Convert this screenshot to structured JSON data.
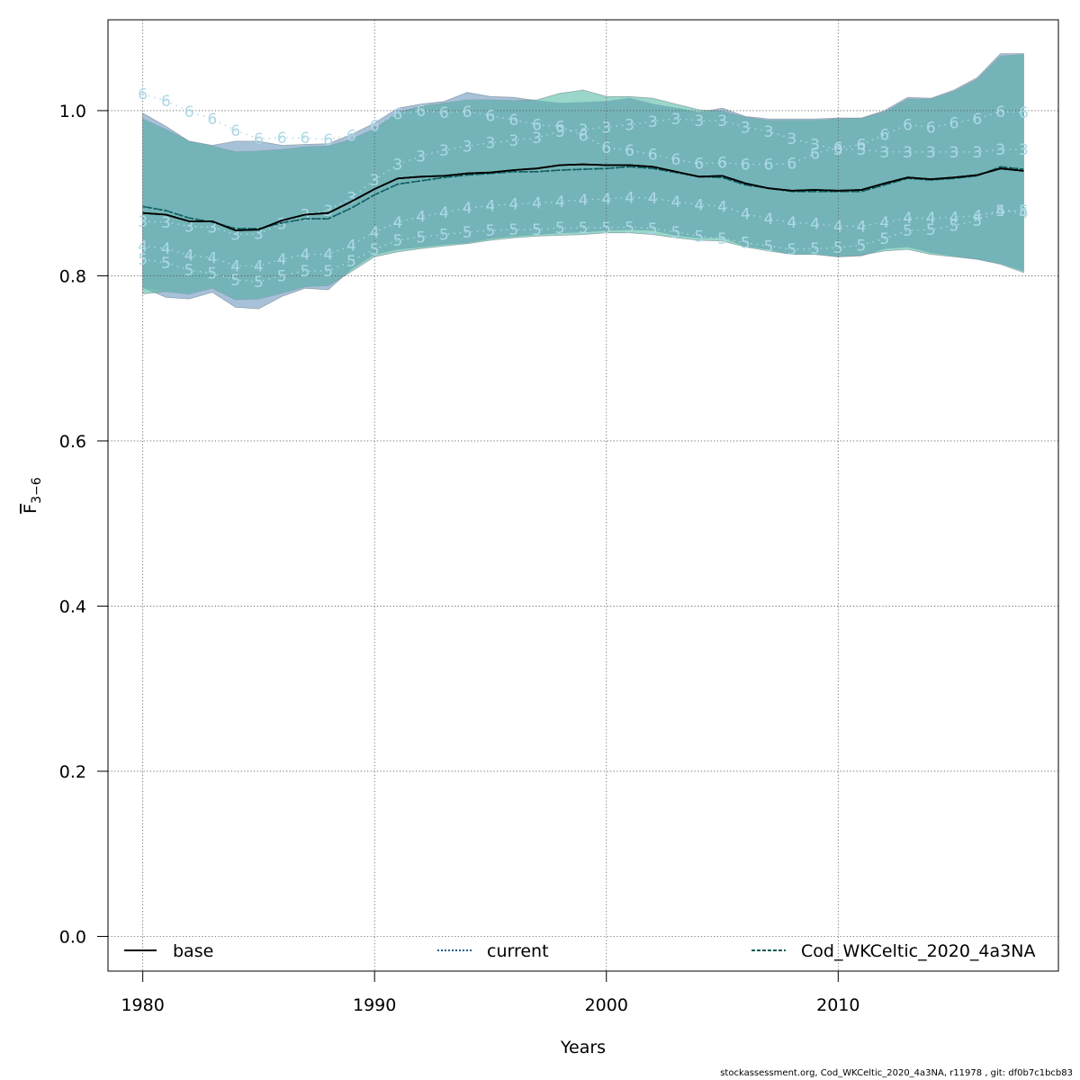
{
  "chart_data": {
    "type": "line",
    "xlabel": "Years",
    "ylabel_base": "F",
    "ylabel_sub": "3−6",
    "xlim": [
      1978.5,
      2019.5
    ],
    "ylim": [
      -0.042,
      1.11
    ],
    "xticks": [
      1980,
      1990,
      2000,
      2010
    ],
    "yticks": [
      0.0,
      0.2,
      0.4,
      0.6,
      0.8,
      1.0
    ],
    "ytick_labels": [
      "0.0",
      "0.2",
      "0.4",
      "0.6",
      "0.8",
      "1.0"
    ],
    "grid": true,
    "legend": [
      "base",
      "current",
      "Cod_WKCeltic_2020_4a3NA"
    ],
    "legend_placement": "bottom",
    "colors": {
      "base_band": "#6d98be",
      "wk_band": "#56bda6",
      "overlap": "#74b4b8",
      "peel": "#add8e6",
      "base_line": "#000000",
      "current_line": "#1f5f8b",
      "wk_line": "#0b5e52"
    },
    "x": [
      1980,
      1981,
      1982,
      1983,
      1984,
      1985,
      1986,
      1987,
      1988,
      1989,
      1990,
      1991,
      1992,
      1993,
      1994,
      1995,
      1996,
      1997,
      1998,
      1999,
      2000,
      2001,
      2002,
      2003,
      2004,
      2005,
      2006,
      2007,
      2008,
      2009,
      2010,
      2011,
      2012,
      2013,
      2014,
      2015,
      2016,
      2017,
      2018
    ],
    "series": [
      {
        "name": "base",
        "style": "solid",
        "values": [
          0.876,
          0.874,
          0.866,
          0.866,
          0.855,
          0.856,
          0.867,
          0.874,
          0.876,
          0.89,
          0.905,
          0.918,
          0.92,
          0.921,
          0.924,
          0.925,
          0.928,
          0.93,
          0.934,
          0.935,
          0.934,
          0.934,
          0.932,
          0.926,
          0.92,
          0.921,
          0.912,
          0.906,
          0.903,
          0.904,
          0.903,
          0.904,
          0.912,
          0.919,
          0.917,
          0.919,
          0.922,
          0.93,
          0.927
        ],
        "lower": [
          0.786,
          0.774,
          0.772,
          0.78,
          0.762,
          0.76,
          0.775,
          0.785,
          0.783,
          0.808,
          0.826,
          0.832,
          0.835,
          0.838,
          0.84,
          0.845,
          0.848,
          0.85,
          0.852,
          0.853,
          0.855,
          0.856,
          0.855,
          0.849,
          0.846,
          0.846,
          0.836,
          0.832,
          0.826,
          0.826,
          0.823,
          0.824,
          0.833,
          0.835,
          0.828,
          0.824,
          0.82,
          0.815,
          0.806
        ],
        "upper": [
          0.997,
          0.981,
          0.963,
          0.958,
          0.963,
          0.963,
          0.958,
          0.959,
          0.96,
          0.971,
          0.985,
          1.003,
          1.008,
          1.011,
          1.022,
          1.017,
          1.016,
          1.012,
          1.009,
          1.01,
          1.011,
          1.015,
          1.008,
          1.003,
          0.998,
          1.003,
          0.993,
          0.99,
          0.99,
          0.99,
          0.991,
          0.991,
          1.0,
          1.016,
          1.015,
          1.025,
          1.04,
          1.069,
          1.069
        ]
      },
      {
        "name": "current",
        "style": "dotted",
        "values": [
          0.884,
          0.879,
          0.87,
          0.865,
          0.857,
          0.857,
          0.864,
          0.869,
          0.869,
          0.882,
          0.898,
          0.911,
          0.915,
          0.919,
          0.922,
          0.924,
          0.926,
          0.926,
          0.928,
          0.929,
          0.93,
          0.932,
          0.93,
          0.925,
          0.92,
          0.919,
          0.91,
          0.906,
          0.902,
          0.902,
          0.902,
          0.902,
          0.91,
          0.918,
          0.916,
          0.918,
          0.921,
          0.932,
          0.929
        ],
        "lower": [
          0.778,
          0.781,
          0.778,
          0.785,
          0.771,
          0.772,
          0.779,
          0.787,
          0.788,
          0.805,
          0.823,
          0.829,
          0.833,
          0.836,
          0.839,
          0.843,
          0.846,
          0.848,
          0.849,
          0.85,
          0.852,
          0.852,
          0.85,
          0.846,
          0.843,
          0.842,
          0.835,
          0.83,
          0.826,
          0.826,
          0.823,
          0.825,
          0.83,
          0.832,
          0.826,
          0.823,
          0.82,
          0.814,
          0.804
        ],
        "upper": [
          0.99,
          0.977,
          0.963,
          0.957,
          0.95,
          0.951,
          0.953,
          0.956,
          0.957,
          0.965,
          0.978,
          0.998,
          1.005,
          1.009,
          1.013,
          1.013,
          1.012,
          1.013,
          1.021,
          1.025,
          1.017,
          1.017,
          1.015,
          1.008,
          1.001,
          0.999,
          0.992,
          0.988,
          0.988,
          0.988,
          0.99,
          0.991,
          0.998,
          1.014,
          1.014,
          1.023,
          1.038,
          1.066,
          1.068
        ]
      },
      {
        "name": "Cod_WKCeltic_2020_4a3NA",
        "style": "dashed",
        "values": [
          0.884,
          0.879,
          0.87,
          0.865,
          0.857,
          0.857,
          0.864,
          0.869,
          0.869,
          0.882,
          0.898,
          0.911,
          0.915,
          0.919,
          0.922,
          0.924,
          0.926,
          0.926,
          0.928,
          0.929,
          0.93,
          0.932,
          0.93,
          0.925,
          0.92,
          0.919,
          0.91,
          0.906,
          0.902,
          0.902,
          0.902,
          0.902,
          0.91,
          0.918,
          0.916,
          0.918,
          0.921,
          0.932,
          0.929
        ],
        "lower": [
          0.778,
          0.781,
          0.778,
          0.785,
          0.771,
          0.772,
          0.779,
          0.787,
          0.788,
          0.805,
          0.823,
          0.829,
          0.833,
          0.836,
          0.839,
          0.843,
          0.846,
          0.848,
          0.849,
          0.85,
          0.852,
          0.852,
          0.85,
          0.846,
          0.843,
          0.842,
          0.835,
          0.83,
          0.826,
          0.826,
          0.823,
          0.825,
          0.83,
          0.832,
          0.826,
          0.823,
          0.82,
          0.814,
          0.804
        ],
        "upper": [
          0.99,
          0.977,
          0.963,
          0.957,
          0.95,
          0.951,
          0.953,
          0.956,
          0.957,
          0.965,
          0.978,
          0.998,
          1.005,
          1.009,
          1.013,
          1.013,
          1.012,
          1.013,
          1.021,
          1.025,
          1.017,
          1.017,
          1.015,
          1.008,
          1.001,
          0.999,
          0.992,
          0.988,
          0.988,
          0.988,
          0.99,
          0.991,
          0.998,
          1.014,
          1.014,
          1.023,
          1.038,
          1.066,
          1.068
        ]
      }
    ],
    "peels": [
      {
        "label": "3",
        "values": [
          0.866,
          0.865,
          0.86,
          0.859,
          0.85,
          0.851,
          0.863,
          0.874,
          0.879,
          0.895,
          0.916,
          0.935,
          0.945,
          0.952,
          0.957,
          0.961,
          0.964,
          0.967,
          0.975,
          0.977,
          0.98,
          0.983,
          0.987,
          0.99,
          0.988,
          0.988,
          0.98,
          0.975,
          0.966,
          0.959,
          0.953,
          0.953,
          0.95,
          0.95,
          0.95,
          0.95,
          0.95,
          0.953,
          0.953
        ]
      },
      {
        "label": "4",
        "values": [
          0.836,
          0.833,
          0.825,
          0.822,
          0.812,
          0.812,
          0.82,
          0.826,
          0.826,
          0.837,
          0.853,
          0.865,
          0.872,
          0.877,
          0.882,
          0.885,
          0.887,
          0.888,
          0.89,
          0.892,
          0.893,
          0.895,
          0.894,
          0.89,
          0.886,
          0.884,
          0.875,
          0.869,
          0.865,
          0.863,
          0.86,
          0.86,
          0.865,
          0.87,
          0.87,
          0.871,
          0.873,
          0.879,
          0.876
        ]
      },
      {
        "label": "5",
        "values": [
          0.82,
          0.816,
          0.807,
          0.803,
          0.795,
          0.793,
          0.8,
          0.806,
          0.806,
          0.818,
          0.832,
          0.843,
          0.847,
          0.85,
          0.853,
          0.855,
          0.856,
          0.856,
          0.858,
          0.858,
          0.858,
          0.859,
          0.857,
          0.853,
          0.848,
          0.845,
          0.84,
          0.836,
          0.832,
          0.833,
          0.834,
          0.837,
          0.845,
          0.855,
          0.856,
          0.861,
          0.867,
          0.879,
          0.879
        ]
      },
      {
        "label": "6",
        "values": [
          1.02,
          1.012,
          0.999,
          0.99,
          0.976,
          0.966,
          0.967,
          0.967,
          0.965,
          0.97,
          0.982,
          0.996,
          1.0,
          0.998,
          0.999,
          0.994,
          0.989,
          0.983,
          0.981,
          0.97,
          0.955,
          0.952,
          0.947,
          0.941,
          0.936,
          0.937,
          0.935,
          0.935,
          0.936,
          0.948,
          0.955,
          0.959,
          0.971,
          0.983,
          0.98,
          0.985,
          0.99,
          0.999,
          0.998
        ]
      }
    ]
  },
  "footer_text": "stockassessment.org, Cod_WKCeltic_2020_4a3NA, r11978 , git: df0b7c1bcb83"
}
